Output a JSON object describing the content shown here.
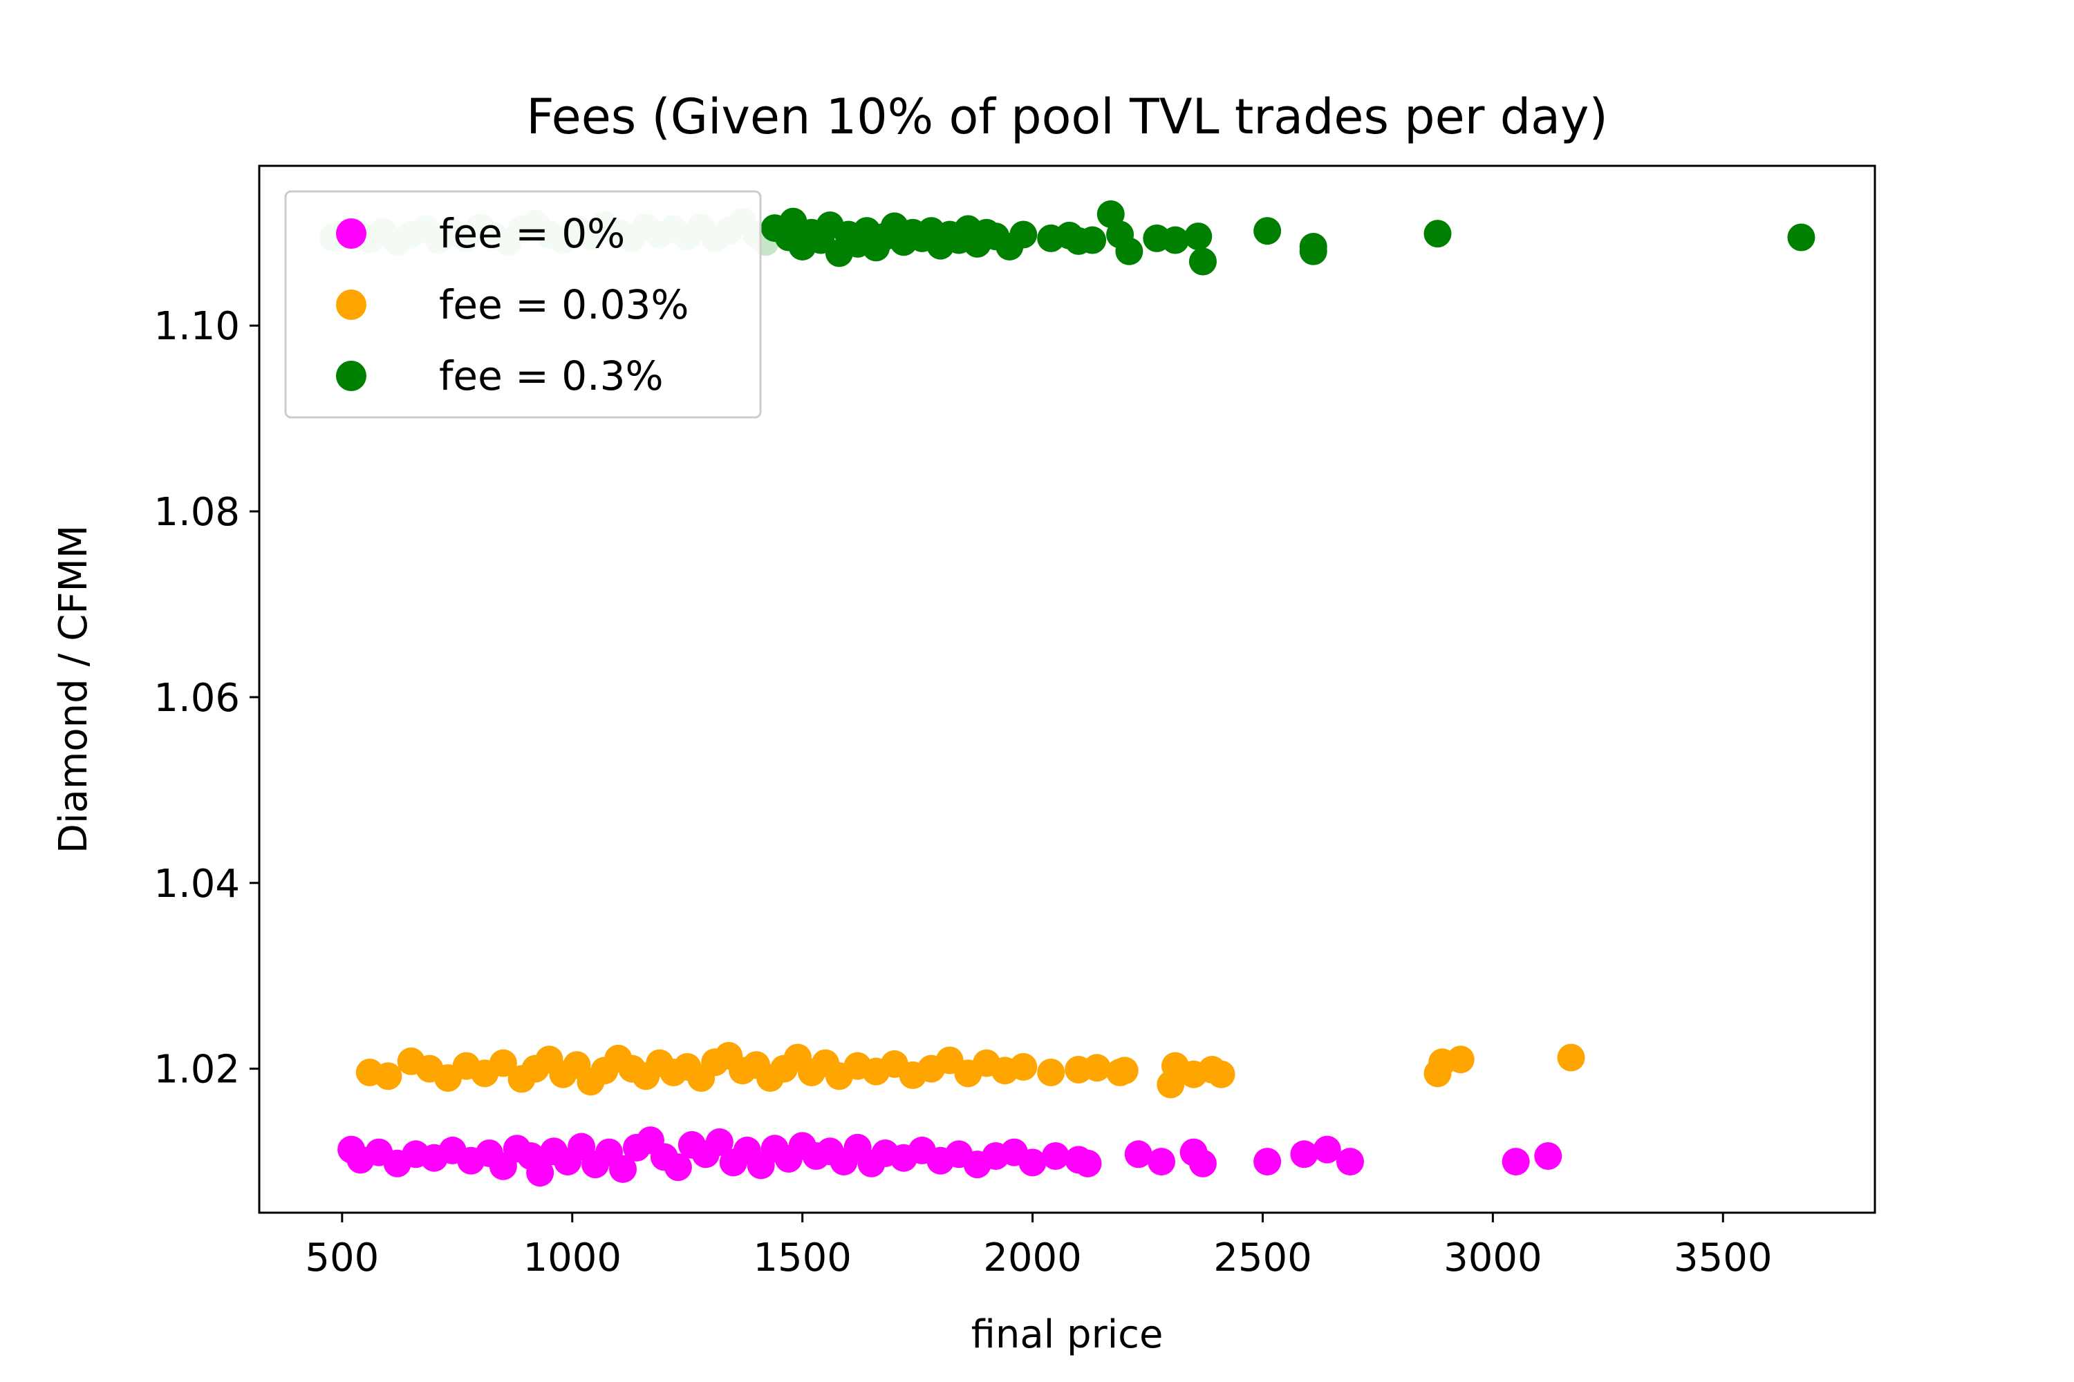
{
  "chart_data": {
    "type": "scatter",
    "title": "Fees (Given 10% of pool TVL trades per day)",
    "xlabel": "final price",
    "ylabel": "Diamond / CFMM",
    "xlim": [
      320,
      3830
    ],
    "ylim": [
      1.0045,
      1.1172
    ],
    "xticks": [
      500,
      1000,
      1500,
      2000,
      2500,
      3000,
      3500
    ],
    "xtick_labels": [
      "500",
      "1000",
      "1500",
      "2000",
      "2500",
      "3000",
      "3500"
    ],
    "yticks": [
      1.02,
      1.04,
      1.06,
      1.08,
      1.1
    ],
    "ytick_labels": [
      "1.02",
      "1.04",
      "1.06",
      "1.08",
      "1.10"
    ],
    "grid": false,
    "legend_position": "top-left",
    "series": [
      {
        "name": "fee = 0%",
        "color": "#ff00ff",
        "points": [
          [
            520,
            1.0113
          ],
          [
            540,
            1.0102
          ],
          [
            580,
            1.011
          ],
          [
            620,
            1.0098
          ],
          [
            660,
            1.0108
          ],
          [
            700,
            1.0104
          ],
          [
            740,
            1.0112
          ],
          [
            780,
            1.0101
          ],
          [
            820,
            1.0109
          ],
          [
            850,
            1.0095
          ],
          [
            880,
            1.0114
          ],
          [
            910,
            1.0106
          ],
          [
            930,
            1.0088
          ],
          [
            960,
            1.0111
          ],
          [
            990,
            1.01
          ],
          [
            1020,
            1.0116
          ],
          [
            1050,
            1.0097
          ],
          [
            1080,
            1.011
          ],
          [
            1110,
            1.0092
          ],
          [
            1140,
            1.0115
          ],
          [
            1170,
            1.0123
          ],
          [
            1200,
            1.0105
          ],
          [
            1230,
            1.0094
          ],
          [
            1260,
            1.0118
          ],
          [
            1290,
            1.0108
          ],
          [
            1320,
            1.0121
          ],
          [
            1350,
            1.0099
          ],
          [
            1380,
            1.0112
          ],
          [
            1410,
            1.0096
          ],
          [
            1440,
            1.0114
          ],
          [
            1470,
            1.0103
          ],
          [
            1500,
            1.0117
          ],
          [
            1530,
            1.0106
          ],
          [
            1560,
            1.0111
          ],
          [
            1590,
            1.01
          ],
          [
            1620,
            1.0115
          ],
          [
            1650,
            1.0098
          ],
          [
            1680,
            1.0109
          ],
          [
            1720,
            1.0104
          ],
          [
            1760,
            1.0112
          ],
          [
            1800,
            1.0101
          ],
          [
            1840,
            1.0108
          ],
          [
            1880,
            1.0097
          ],
          [
            1920,
            1.0106
          ],
          [
            1960,
            1.011
          ],
          [
            2000,
            1.0099
          ],
          [
            2050,
            1.0106
          ],
          [
            2100,
            1.0102
          ],
          [
            2120,
            1.0098
          ],
          [
            2230,
            1.0108
          ],
          [
            2280,
            1.01
          ],
          [
            2350,
            1.011
          ],
          [
            2370,
            1.0098
          ],
          [
            2510,
            1.01
          ],
          [
            2590,
            1.0108
          ],
          [
            2640,
            1.0113
          ],
          [
            2690,
            1.01
          ],
          [
            3050,
            1.01
          ],
          [
            3120,
            1.0106
          ]
        ]
      },
      {
        "name": "fee = 0.03%",
        "color": "#ffa500",
        "points": [
          [
            560,
            1.0196
          ],
          [
            600,
            1.0192
          ],
          [
            650,
            1.0208
          ],
          [
            690,
            1.02
          ],
          [
            730,
            1.019
          ],
          [
            770,
            1.0203
          ],
          [
            810,
            1.0195
          ],
          [
            850,
            1.0206
          ],
          [
            890,
            1.0189
          ],
          [
            920,
            1.02
          ],
          [
            950,
            1.021
          ],
          [
            980,
            1.0194
          ],
          [
            1010,
            1.0204
          ],
          [
            1040,
            1.0186
          ],
          [
            1070,
            1.0198
          ],
          [
            1100,
            1.0211
          ],
          [
            1130,
            1.02
          ],
          [
            1160,
            1.0192
          ],
          [
            1190,
            1.0206
          ],
          [
            1220,
            1.0196
          ],
          [
            1250,
            1.0202
          ],
          [
            1280,
            1.019
          ],
          [
            1310,
            1.0207
          ],
          [
            1340,
            1.0214
          ],
          [
            1370,
            1.0198
          ],
          [
            1400,
            1.0204
          ],
          [
            1430,
            1.019
          ],
          [
            1460,
            1.02
          ],
          [
            1490,
            1.0212
          ],
          [
            1520,
            1.0196
          ],
          [
            1550,
            1.0206
          ],
          [
            1580,
            1.0192
          ],
          [
            1620,
            1.0203
          ],
          [
            1660,
            1.0197
          ],
          [
            1700,
            1.0205
          ],
          [
            1740,
            1.0193
          ],
          [
            1780,
            1.02
          ],
          [
            1820,
            1.0209
          ],
          [
            1860,
            1.0195
          ],
          [
            1900,
            1.0206
          ],
          [
            1940,
            1.0198
          ],
          [
            1980,
            1.0202
          ],
          [
            2040,
            1.0196
          ],
          [
            2100,
            1.0199
          ],
          [
            2140,
            1.0201
          ],
          [
            2190,
            1.0196
          ],
          [
            2200,
            1.0198
          ],
          [
            2300,
            1.0183
          ],
          [
            2310,
            1.0203
          ],
          [
            2350,
            1.0194
          ],
          [
            2390,
            1.0199
          ],
          [
            2410,
            1.0194
          ],
          [
            2880,
            1.0195
          ],
          [
            2890,
            1.0207
          ],
          [
            2930,
            1.021
          ],
          [
            3170,
            1.0212
          ]
        ]
      },
      {
        "name": "fee = 0.3%",
        "color": "#008000",
        "points": [
          [
            1440,
            1.1105
          ],
          [
            1470,
            1.1095
          ],
          [
            1480,
            1.1112
          ],
          [
            1500,
            1.1085
          ],
          [
            1520,
            1.11
          ],
          [
            1540,
            1.1092
          ],
          [
            1560,
            1.1108
          ],
          [
            1580,
            1.1078
          ],
          [
            1600,
            1.1098
          ],
          [
            1620,
            1.1088
          ],
          [
            1640,
            1.1102
          ],
          [
            1660,
            1.1084
          ],
          [
            1680,
            1.1096
          ],
          [
            1700,
            1.1107
          ],
          [
            1720,
            1.109
          ],
          [
            1740,
            1.11
          ],
          [
            1760,
            1.1094
          ],
          [
            1780,
            1.1102
          ],
          [
            1800,
            1.1086
          ],
          [
            1820,
            1.1098
          ],
          [
            1840,
            1.1092
          ],
          [
            1860,
            1.1104
          ],
          [
            1880,
            1.1088
          ],
          [
            1900,
            1.11
          ],
          [
            1920,
            1.1096
          ],
          [
            1950,
            1.1085
          ],
          [
            1980,
            1.1098
          ],
          [
            2040,
            1.1094
          ],
          [
            2080,
            1.1097
          ],
          [
            2100,
            1.1091
          ],
          [
            2130,
            1.1092
          ],
          [
            2170,
            1.112
          ],
          [
            2190,
            1.1098
          ],
          [
            2210,
            1.108
          ],
          [
            2270,
            1.1094
          ],
          [
            2310,
            1.1092
          ],
          [
            2360,
            1.1096
          ],
          [
            2370,
            1.1069
          ],
          [
            2510,
            1.1102
          ],
          [
            2610,
            1.1085
          ],
          [
            2610,
            1.108
          ],
          [
            2880,
            1.1099
          ],
          [
            3670,
            1.1095
          ]
        ]
      }
    ],
    "faded_green_points": [
      [
        480,
        1.1095
      ],
      [
        500,
        1.1098
      ],
      [
        520,
        1.11
      ],
      [
        540,
        1.1097
      ],
      [
        560,
        1.1093
      ],
      [
        590,
        1.1101
      ],
      [
        620,
        1.109
      ],
      [
        650,
        1.1098
      ],
      [
        680,
        1.1104
      ],
      [
        710,
        1.1092
      ],
      [
        740,
        1.11
      ],
      [
        770,
        1.1094
      ],
      [
        800,
        1.1106
      ],
      [
        830,
        1.1096
      ],
      [
        860,
        1.109
      ],
      [
        890,
        1.1104
      ],
      [
        920,
        1.111
      ],
      [
        950,
        1.1098
      ],
      [
        980,
        1.1092
      ],
      [
        1010,
        1.1104
      ],
      [
        1040,
        1.1096
      ],
      [
        1070,
        1.1108
      ],
      [
        1100,
        1.11
      ],
      [
        1130,
        1.1094
      ],
      [
        1160,
        1.1106
      ],
      [
        1190,
        1.1098
      ],
      [
        1220,
        1.1104
      ],
      [
        1250,
        1.1096
      ],
      [
        1280,
        1.1106
      ],
      [
        1310,
        1.1094
      ],
      [
        1340,
        1.1102
      ],
      [
        1370,
        1.1112
      ],
      [
        1400,
        1.1098
      ],
      [
        1420,
        1.109
      ]
    ],
    "faded_green_color": "#c8e6c8"
  }
}
